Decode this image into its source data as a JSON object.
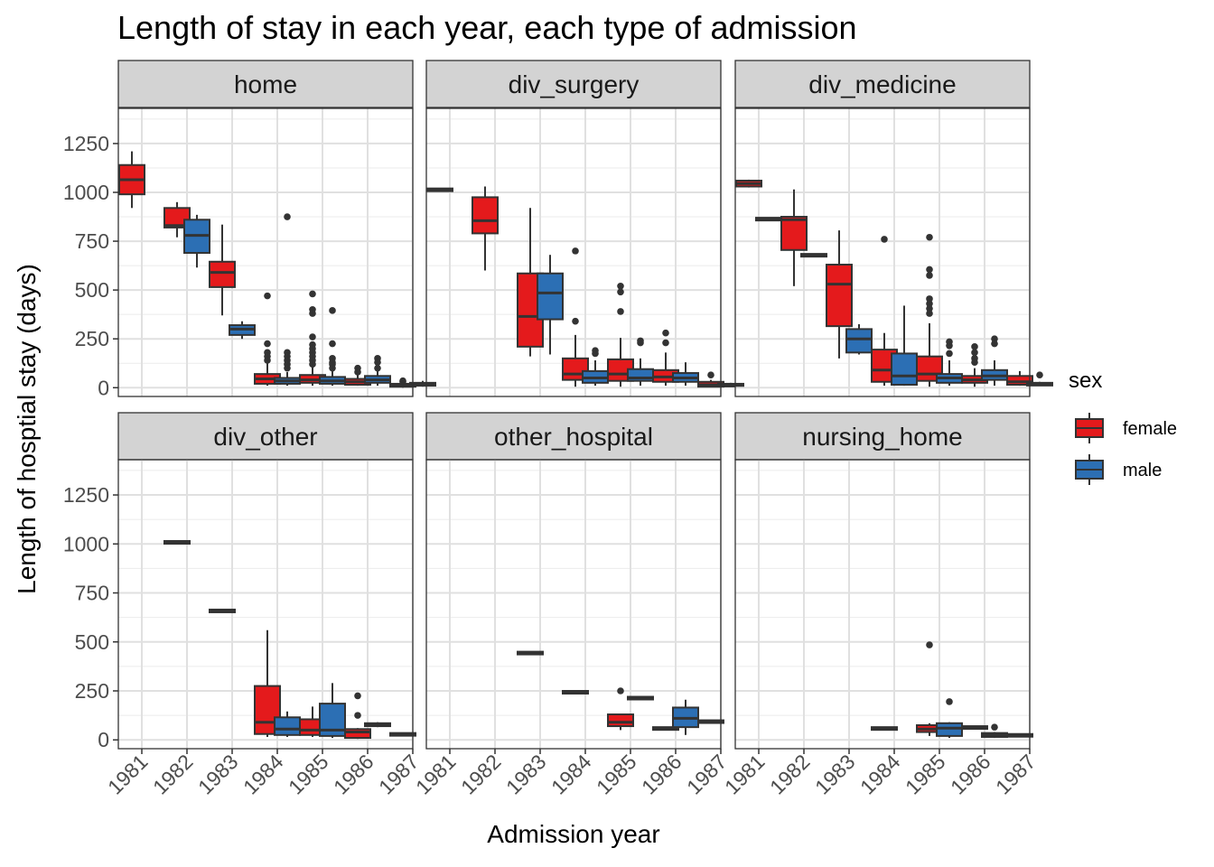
{
  "chart_data": {
    "type": "boxplot",
    "title": "Length of stay in each year, each type of admission",
    "xlabel": "Admission year",
    "ylabel": "Length of hosptial stay (days)",
    "categories": [
      "1981",
      "1982",
      "1983",
      "1984",
      "1985",
      "1986",
      "1987"
    ],
    "y_ticks": [
      "0",
      "250",
      "500",
      "750",
      "1000",
      "1250"
    ],
    "ylim": [
      -45,
      1430
    ],
    "grid": true,
    "facet_strip_color": "#d3d3d3",
    "legend": {
      "title": "sex",
      "placement": "right",
      "entries": [
        {
          "label": "female",
          "color": "#e41a1c"
        },
        {
          "label": "male",
          "color": "#2c6fb4"
        }
      ]
    },
    "panels": [
      {
        "name": "home",
        "boxes": [
          {
            "year": "1981",
            "sex": "female",
            "low": 920,
            "q1": 990,
            "median": 1065,
            "q3": 1140,
            "high": 1210,
            "outliers": []
          },
          {
            "year": "1982",
            "sex": "female",
            "low": 770,
            "q1": 820,
            "median": 830,
            "q3": 920,
            "high": 950,
            "outliers": []
          },
          {
            "year": "1982",
            "sex": "male",
            "low": 615,
            "q1": 690,
            "median": 780,
            "q3": 860,
            "high": 885,
            "outliers": []
          },
          {
            "year": "1983",
            "sex": "female",
            "low": 370,
            "q1": 515,
            "median": 590,
            "q3": 645,
            "high": 835,
            "outliers": []
          },
          {
            "year": "1983",
            "sex": "male",
            "low": 250,
            "q1": 270,
            "median": 300,
            "q3": 320,
            "high": 340,
            "outliers": []
          },
          {
            "year": "1984",
            "sex": "female",
            "low": 10,
            "q1": 20,
            "median": 45,
            "q3": 70,
            "high": 125,
            "outliers": [
              470,
              225,
              180,
              160,
              140
            ]
          },
          {
            "year": "1984",
            "sex": "male",
            "low": 10,
            "q1": 20,
            "median": 35,
            "q3": 50,
            "high": 80,
            "outliers": [
              875,
              180,
              160,
              140,
              120,
              100
            ]
          },
          {
            "year": "1985",
            "sex": "female",
            "low": 10,
            "q1": 25,
            "median": 40,
            "q3": 65,
            "high": 110,
            "outliers": [
              480,
              400,
              380,
              260,
              220,
              200,
              180,
              160,
              140,
              120
            ]
          },
          {
            "year": "1985",
            "sex": "male",
            "low": 10,
            "q1": 20,
            "median": 35,
            "q3": 55,
            "high": 85,
            "outliers": [
              395,
              225,
              150,
              130,
              120,
              100
            ]
          },
          {
            "year": "1986",
            "sex": "female",
            "low": 10,
            "q1": 15,
            "median": 30,
            "q3": 45,
            "high": 65,
            "outliers": [
              100,
              80
            ]
          },
          {
            "year": "1986",
            "sex": "male",
            "low": 10,
            "q1": 25,
            "median": 40,
            "q3": 60,
            "high": 85,
            "outliers": [
              150,
              130,
              100
            ]
          },
          {
            "year": "1987",
            "sex": "female",
            "low": 0,
            "q1": 5,
            "median": 10,
            "q3": 20,
            "high": 25,
            "outliers": [
              35,
              30
            ]
          },
          {
            "year": "1987",
            "sex": "male",
            "low": 5,
            "q1": 10,
            "median": 15,
            "q3": 25,
            "high": 35,
            "outliers": []
          }
        ]
      },
      {
        "name": "div_surgery",
        "boxes": [
          {
            "year": "1981",
            "sex": "female",
            "low": 1010,
            "q1": 1010,
            "median": 1015,
            "q3": 1020,
            "high": 1020,
            "outliers": []
          },
          {
            "year": "1982",
            "sex": "female",
            "low": 600,
            "q1": 790,
            "median": 855,
            "q3": 975,
            "high": 1030,
            "outliers": []
          },
          {
            "year": "1983",
            "sex": "female",
            "low": 160,
            "q1": 210,
            "median": 365,
            "q3": 585,
            "high": 920,
            "outliers": []
          },
          {
            "year": "1983",
            "sex": "male",
            "low": 170,
            "q1": 350,
            "median": 485,
            "q3": 585,
            "high": 680,
            "outliers": []
          },
          {
            "year": "1984",
            "sex": "female",
            "low": 5,
            "q1": 40,
            "median": 70,
            "q3": 150,
            "high": 270,
            "outliers": [
              700,
              340
            ]
          },
          {
            "year": "1984",
            "sex": "male",
            "low": 10,
            "q1": 25,
            "median": 50,
            "q3": 85,
            "high": 140,
            "outliers": [
              190,
              175
            ]
          },
          {
            "year": "1985",
            "sex": "female",
            "low": 5,
            "q1": 35,
            "median": 70,
            "q3": 145,
            "high": 255,
            "outliers": [
              520,
              490,
              390
            ]
          },
          {
            "year": "1985",
            "sex": "male",
            "low": 10,
            "q1": 35,
            "median": 50,
            "q3": 95,
            "high": 150,
            "outliers": [
              240,
              230
            ]
          },
          {
            "year": "1986",
            "sex": "female",
            "low": 10,
            "q1": 30,
            "median": 55,
            "q3": 90,
            "high": 180,
            "outliers": [
              280,
              230
            ]
          },
          {
            "year": "1986",
            "sex": "male",
            "low": 10,
            "q1": 30,
            "median": 50,
            "q3": 75,
            "high": 130,
            "outliers": []
          },
          {
            "year": "1987",
            "sex": "female",
            "low": 5,
            "q1": 5,
            "median": 15,
            "q3": 30,
            "high": 40,
            "outliers": [
              65
            ]
          },
          {
            "year": "1987",
            "sex": "male",
            "low": 10,
            "q1": 10,
            "median": 15,
            "q3": 20,
            "high": 25,
            "outliers": []
          }
        ]
      },
      {
        "name": "div_medicine",
        "boxes": [
          {
            "year": "1981",
            "sex": "female",
            "low": 1025,
            "q1": 1030,
            "median": 1045,
            "q3": 1060,
            "high": 1065,
            "outliers": []
          },
          {
            "year": "1981",
            "sex": "male",
            "low": 865,
            "q1": 865,
            "median": 865,
            "q3": 870,
            "high": 870,
            "outliers": []
          },
          {
            "year": "1982",
            "sex": "female",
            "low": 520,
            "q1": 705,
            "median": 860,
            "q3": 875,
            "high": 1015,
            "outliers": []
          },
          {
            "year": "1982",
            "sex": "male",
            "low": 675,
            "q1": 675,
            "median": 680,
            "q3": 685,
            "high": 685,
            "outliers": []
          },
          {
            "year": "1983",
            "sex": "female",
            "low": 150,
            "q1": 315,
            "median": 530,
            "q3": 630,
            "high": 805,
            "outliers": []
          },
          {
            "year": "1983",
            "sex": "male",
            "low": 170,
            "q1": 180,
            "median": 250,
            "q3": 300,
            "high": 325,
            "outliers": []
          },
          {
            "year": "1984",
            "sex": "female",
            "low": 10,
            "q1": 30,
            "median": 90,
            "q3": 195,
            "high": 280,
            "outliers": [
              760
            ]
          },
          {
            "year": "1984",
            "sex": "male",
            "low": 10,
            "q1": 15,
            "median": 60,
            "q3": 175,
            "high": 420,
            "outliers": []
          },
          {
            "year": "1985",
            "sex": "female",
            "low": 5,
            "q1": 35,
            "median": 70,
            "q3": 160,
            "high": 330,
            "outliers": [
              770,
              605,
              575,
              455,
              430,
              405,
              380
            ]
          },
          {
            "year": "1985",
            "sex": "male",
            "low": 10,
            "q1": 25,
            "median": 50,
            "q3": 70,
            "high": 140,
            "outliers": [
              235,
              215,
              175
            ]
          },
          {
            "year": "1986",
            "sex": "female",
            "low": 5,
            "q1": 25,
            "median": 40,
            "q3": 60,
            "high": 100,
            "outliers": [
              210,
              180,
              150,
              130
            ]
          },
          {
            "year": "1986",
            "sex": "male",
            "low": 10,
            "q1": 40,
            "median": 60,
            "q3": 90,
            "high": 140,
            "outliers": [
              250,
              225
            ]
          },
          {
            "year": "1987",
            "sex": "female",
            "low": 10,
            "q1": 15,
            "median": 30,
            "q3": 60,
            "high": 85,
            "outliers": []
          },
          {
            "year": "1987",
            "sex": "male",
            "low": 10,
            "q1": 15,
            "median": 20,
            "q3": 25,
            "high": 30,
            "outliers": [
              65
            ]
          }
        ]
      },
      {
        "name": "div_other",
        "boxes": [
          {
            "year": "1982",
            "sex": "female",
            "low": 1010,
            "q1": 1010,
            "median": 1010,
            "q3": 1015,
            "high": 1015,
            "outliers": []
          },
          {
            "year": "1983",
            "sex": "female",
            "low": 660,
            "q1": 660,
            "median": 660,
            "q3": 665,
            "high": 665,
            "outliers": []
          },
          {
            "year": "1984",
            "sex": "female",
            "low": 15,
            "q1": 30,
            "median": 90,
            "q3": 275,
            "high": 560,
            "outliers": []
          },
          {
            "year": "1984",
            "sex": "male",
            "low": 15,
            "q1": 25,
            "median": 55,
            "q3": 115,
            "high": 145,
            "outliers": []
          },
          {
            "year": "1985",
            "sex": "female",
            "low": 15,
            "q1": 25,
            "median": 50,
            "q3": 105,
            "high": 170,
            "outliers": []
          },
          {
            "year": "1985",
            "sex": "male",
            "low": 10,
            "q1": 20,
            "median": 50,
            "q3": 185,
            "high": 290,
            "outliers": []
          },
          {
            "year": "1986",
            "sex": "female",
            "low": 5,
            "q1": 10,
            "median": 40,
            "q3": 55,
            "high": 60,
            "outliers": [
              225,
              125
            ]
          },
          {
            "year": "1986",
            "sex": "male",
            "low": 65,
            "q1": 70,
            "median": 75,
            "q3": 85,
            "high": 90,
            "outliers": []
          },
          {
            "year": "1987",
            "sex": "female",
            "low": 25,
            "q1": 25,
            "median": 30,
            "q3": 35,
            "high": 35,
            "outliers": []
          }
        ]
      },
      {
        "name": "other_hospital",
        "boxes": [
          {
            "year": "1983",
            "sex": "female",
            "low": 440,
            "q1": 440,
            "median": 445,
            "q3": 450,
            "high": 450,
            "outliers": []
          },
          {
            "year": "1984",
            "sex": "female",
            "low": 240,
            "q1": 240,
            "median": 245,
            "q3": 250,
            "high": 250,
            "outliers": []
          },
          {
            "year": "1985",
            "sex": "female",
            "low": 50,
            "q1": 70,
            "median": 90,
            "q3": 130,
            "high": 130,
            "outliers": [
              250
            ]
          },
          {
            "year": "1985",
            "sex": "male",
            "low": 210,
            "q1": 210,
            "median": 215,
            "q3": 220,
            "high": 220,
            "outliers": []
          },
          {
            "year": "1986",
            "sex": "female",
            "low": 55,
            "q1": 55,
            "median": 60,
            "q3": 65,
            "high": 65,
            "outliers": []
          },
          {
            "year": "1986",
            "sex": "male",
            "low": 25,
            "q1": 65,
            "median": 110,
            "q3": 165,
            "high": 205,
            "outliers": []
          },
          {
            "year": "1987",
            "sex": "female",
            "low": 90,
            "q1": 90,
            "median": 95,
            "q3": 100,
            "high": 100,
            "outliers": []
          }
        ]
      },
      {
        "name": "nursing_home",
        "boxes": [
          {
            "year": "1984",
            "sex": "female",
            "low": 55,
            "q1": 55,
            "median": 60,
            "q3": 65,
            "high": 65,
            "outliers": []
          },
          {
            "year": "1985",
            "sex": "female",
            "low": 20,
            "q1": 40,
            "median": 55,
            "q3": 75,
            "high": 85,
            "outliers": [
              485
            ]
          },
          {
            "year": "1985",
            "sex": "male",
            "low": 10,
            "q1": 20,
            "median": 60,
            "q3": 85,
            "high": 90,
            "outliers": [
              195
            ]
          },
          {
            "year": "1986",
            "sex": "female",
            "low": 60,
            "q1": 60,
            "median": 65,
            "q3": 70,
            "high": 70,
            "outliers": []
          },
          {
            "year": "1986",
            "sex": "male",
            "low": 10,
            "q1": 15,
            "median": 25,
            "q3": 35,
            "high": 40,
            "outliers": [
              65
            ]
          },
          {
            "year": "1987",
            "sex": "female",
            "low": 20,
            "q1": 20,
            "median": 25,
            "q3": 30,
            "high": 30,
            "outliers": []
          }
        ]
      }
    ]
  }
}
